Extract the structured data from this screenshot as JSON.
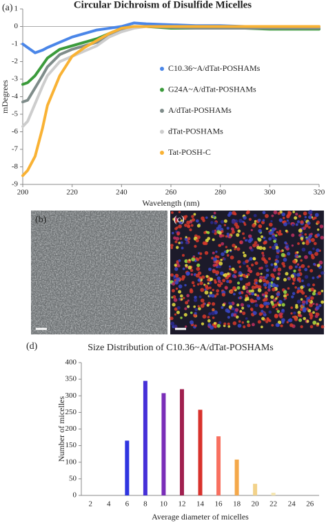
{
  "panel_labels": [
    "(a)",
    "(b)",
    "(c)",
    "(d)"
  ],
  "chart_data": [
    {
      "type": "line",
      "title": "Circular Dichroism of Disulfide Micelles",
      "x_label": "Wavelength (nm)",
      "y_label": "mDegrees",
      "xlim": [
        200,
        320
      ],
      "xticks": [
        200,
        220,
        240,
        260,
        280,
        300,
        320
      ],
      "ylim": [
        -9,
        1
      ],
      "yticks": [
        -9,
        -8,
        -7,
        -6,
        -5,
        -4,
        -3,
        -2,
        -1,
        0,
        1
      ],
      "legend": "right",
      "grid": false,
      "x": [
        200,
        202,
        205,
        208,
        210,
        215,
        220,
        225,
        230,
        235,
        240,
        245,
        250,
        260,
        270,
        280,
        290,
        300,
        310,
        320
      ],
      "series": [
        {
          "name": "C10.36~A/dTat-POSHAMs",
          "color": "#4a86e8",
          "values": [
            -1.0,
            -1.2,
            -1.5,
            -1.35,
            -1.2,
            -0.9,
            -0.6,
            -0.4,
            -0.2,
            -0.1,
            0.0,
            0.2,
            0.15,
            0.1,
            0.05,
            0.05,
            0.0,
            0.0,
            0.0,
            0.0
          ]
        },
        {
          "name": "G24A~A/dTat-POSHAMs",
          "color": "#3b9b3b",
          "values": [
            -3.3,
            -3.2,
            -2.8,
            -2.2,
            -1.8,
            -1.3,
            -1.1,
            -0.9,
            -0.7,
            -0.4,
            -0.1,
            0.0,
            0.0,
            -0.1,
            -0.1,
            -0.1,
            -0.1,
            -0.15,
            -0.15,
            -0.15
          ]
        },
        {
          "name": "A/dTat-POSHAMs",
          "color": "#7f8c8a",
          "values": [
            -4.3,
            -4.2,
            -3.5,
            -2.8,
            -2.3,
            -1.6,
            -1.3,
            -1.1,
            -0.9,
            -0.5,
            -0.2,
            0.0,
            0.0,
            -0.05,
            -0.1,
            -0.1,
            -0.1,
            -0.1,
            -0.1,
            -0.1
          ]
        },
        {
          "name": "dTat-POSHAMs",
          "color": "#cdcdcd",
          "values": [
            -5.7,
            -5.4,
            -4.4,
            -3.4,
            -2.8,
            -2.0,
            -1.7,
            -1.4,
            -1.1,
            -0.6,
            -0.3,
            -0.1,
            0.0,
            0.0,
            0.0,
            0.0,
            0.0,
            0.0,
            0.0,
            0.0
          ]
        },
        {
          "name": "Tat-POSH-C",
          "color": "#f9b234",
          "values": [
            -8.5,
            -8.2,
            -7.4,
            -5.8,
            -4.5,
            -2.8,
            -1.7,
            -1.2,
            -0.8,
            -0.4,
            -0.1,
            0.0,
            0.0,
            0.0,
            0.0,
            0.0,
            0.0,
            0.0,
            0.0,
            0.0
          ]
        }
      ]
    },
    {
      "type": "bar",
      "title": "Size Distribution of C10.36~A/dTat-POSHAMs",
      "x_label": "Average diameter of micelles",
      "y_label": "Number of micelles",
      "categories": [
        "2",
        "4",
        "6",
        "8",
        "10",
        "12",
        "14",
        "16",
        "18",
        "20",
        "22",
        "24",
        "26"
      ],
      "values": [
        0,
        0,
        165,
        345,
        308,
        320,
        258,
        178,
        108,
        35,
        8,
        0,
        0
      ],
      "colors": [
        "#2a2ad8",
        "#2a2ad8",
        "#2f35e0",
        "#4630d8",
        "#7a2eb8",
        "#a0204f",
        "#d8322c",
        "#f87060",
        "#f4a84a",
        "#f2d28a",
        "#f5e6b0",
        "#f5e6b0",
        "#f5e6b0"
      ],
      "ylim": [
        0,
        400
      ],
      "yticks": [
        0,
        50,
        100,
        150,
        200,
        250,
        300,
        350,
        400
      ],
      "grid": false
    }
  ]
}
